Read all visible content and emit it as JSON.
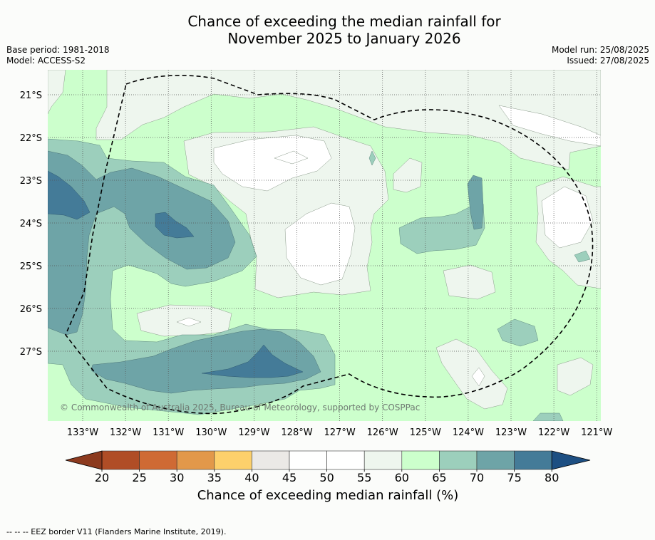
{
  "title": {
    "line1": "Chance of exceeding the median rainfall for",
    "line2": "November 2025 to January 2026"
  },
  "meta_left": {
    "base_period": "Base period: 1981-2018",
    "model": "Model: ACCESS-S2"
  },
  "meta_right": {
    "model_run": "Model run: 25/08/2025",
    "issued": "Issued: 27/08/2025"
  },
  "credit": "© Commonwealth of Australia 2025, Bureau of Meteorology, supported by COSPPac",
  "map": {
    "lat_labels": [
      "21°S",
      "22°S",
      "23°S",
      "24°S",
      "25°S",
      "26°S",
      "27°S"
    ],
    "lon_labels": [
      "133°W",
      "132°W",
      "131°W",
      "130°W",
      "129°W",
      "128°W",
      "127°W",
      "126°W",
      "125°W",
      "124°W",
      "123°W",
      "122°W",
      "121°W"
    ],
    "eez_border_style": "dashed black",
    "gridlines": "dotted"
  },
  "colorbar": {
    "label": "Chance of exceeding median rainfall (%)",
    "ticks": [
      "20",
      "25",
      "30",
      "35",
      "40",
      "45",
      "50",
      "55",
      "60",
      "65",
      "70",
      "75",
      "80"
    ],
    "colors": [
      "#b04d26",
      "#cf6a34",
      "#e2984a",
      "#fdd06b",
      "#ebe9e6",
      "#ffffff",
      "#ffffff",
      "#eef6ee",
      "#ccffcc",
      "#9ccfbc",
      "#6ea4a7",
      "#447b98"
    ],
    "extend_low_color": "#8c3a1e",
    "extend_high_color": "#1d4f82"
  },
  "footer": "--  --  -- EEZ border V11 (Flanders Marine Institute, 2019)."
}
